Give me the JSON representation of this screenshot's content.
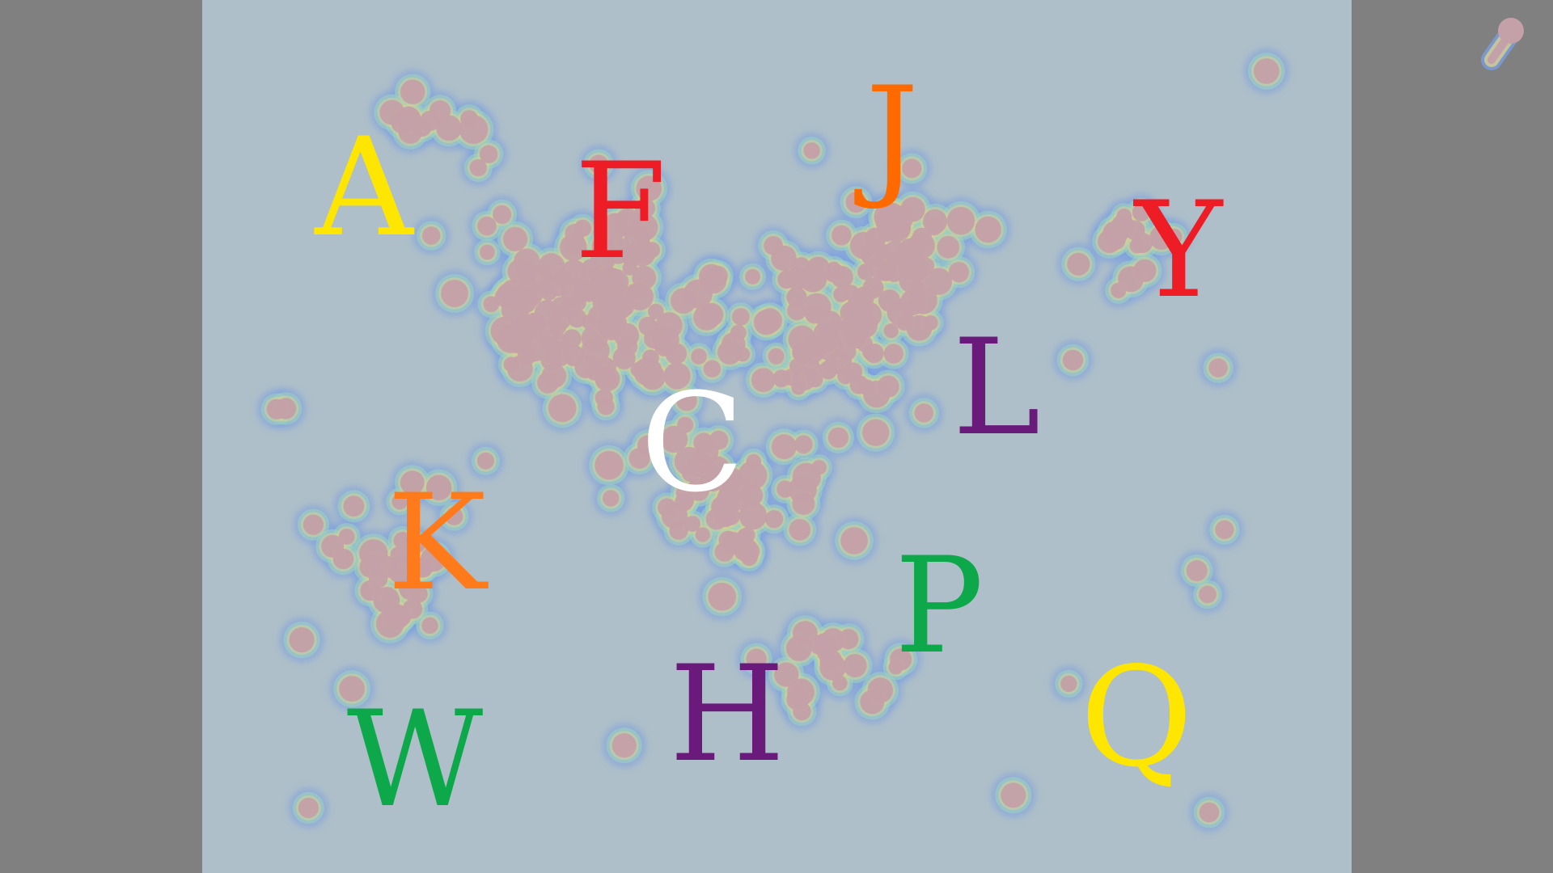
{
  "letters": [
    {
      "char": "A",
      "color": "#ffe600"
    },
    {
      "char": "F",
      "color": "#ee1c24"
    },
    {
      "char": "J",
      "color": "#ff6a00"
    },
    {
      "char": "Y",
      "color": "#ee1c24"
    },
    {
      "char": "L",
      "color": "#6a1a7a"
    },
    {
      "char": "C",
      "color": "#ffffff"
    },
    {
      "char": "K",
      "color": "#ff7a1a"
    },
    {
      "char": "P",
      "color": "#0da84a"
    },
    {
      "char": "Q",
      "color": "#ffe600"
    },
    {
      "char": "W",
      "color": "#0da84a"
    },
    {
      "char": "H",
      "color": "#6a1a7a"
    }
  ],
  "colors": {
    "background": "#808080",
    "panel": "#aebfc9",
    "blob_core": "#c4a0a8",
    "halo_outer": "#7a9ee0",
    "halo_mid": "#9dd0c0",
    "halo_inner": "#d8d090"
  }
}
